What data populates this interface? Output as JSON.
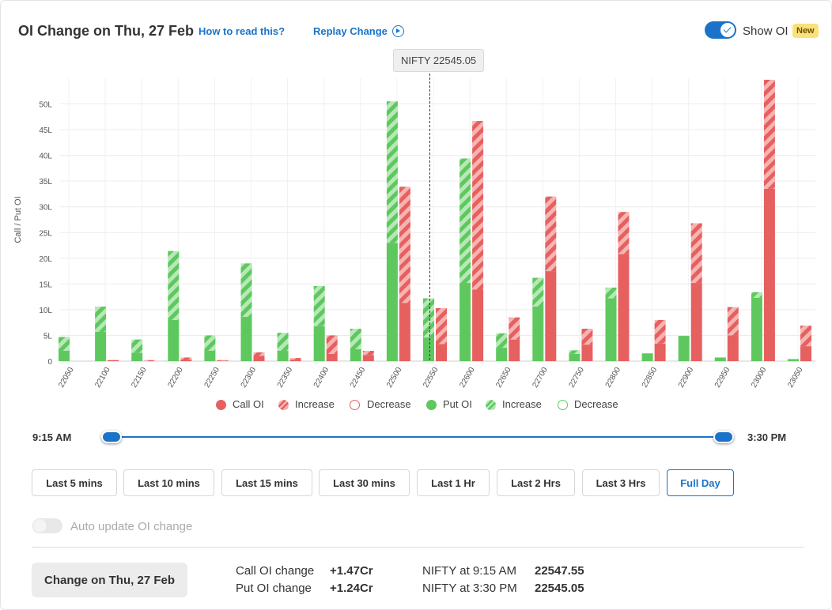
{
  "header": {
    "title": "OI Change on Thu, 27 Feb",
    "how_to_read": "How to read this?",
    "replay": "Replay Change",
    "show_oi_label": "Show OI",
    "new_badge": "New"
  },
  "tooltip": "NIFTY 22545.05",
  "colors": {
    "call": "#e5605f",
    "call_increase_stripe": "#f6b4b3",
    "put": "#5ec85e",
    "put_increase_stripe": "#b7e8b7",
    "accent": "#1a73c8"
  },
  "chart_data": {
    "type": "bar",
    "ylabel": "Call / Put OI",
    "ylim": [
      0,
      55
    ],
    "yticks": [
      "0",
      "5L",
      "10L",
      "15L",
      "20L",
      "25L",
      "30L",
      "35L",
      "40L",
      "45L",
      "50L"
    ],
    "grid": true,
    "categories": [
      "22050",
      "22100",
      "22150",
      "22200",
      "22250",
      "22300",
      "22350",
      "22400",
      "22450",
      "22500",
      "22550",
      "22600",
      "22650",
      "22700",
      "22750",
      "22800",
      "22850",
      "22900",
      "22950",
      "23000",
      "23050"
    ],
    "spot_marker": {
      "label": "NIFTY 22545.05",
      "value": 22545.05
    },
    "series": [
      {
        "name": "Put OI",
        "values": [
          2.0,
          5.7,
          1.6,
          8.0,
          2.0,
          8.6,
          2.0,
          6.8,
          2.3,
          23.0,
          4.6,
          15.2,
          2.6,
          10.6,
          1.4,
          12.2,
          1.5,
          4.9,
          0.7,
          12.3,
          0.4
        ]
      },
      {
        "name": "Increase",
        "values": [
          2.7,
          4.9,
          2.6,
          13.4,
          3.0,
          10.4,
          3.5,
          7.8,
          4.0,
          27.5,
          7.6,
          24.2,
          2.8,
          5.6,
          0.7,
          2.1,
          0,
          0,
          0,
          1.1,
          0
        ]
      },
      {
        "name": "Call OI",
        "values": [
          0,
          0.2,
          0,
          0.3,
          0.1,
          1.0,
          0.3,
          1.4,
          1.2,
          11.3,
          3.3,
          13.9,
          4.2,
          17.5,
          3.2,
          20.8,
          3.4,
          15.2,
          5.0,
          33.5,
          2.9
        ]
      },
      {
        "name": "Increase",
        "values": [
          0,
          0,
          0.2,
          0.4,
          0.1,
          0.7,
          0.3,
          3.6,
          0.8,
          22.6,
          7.0,
          32.8,
          4.3,
          14.5,
          3.1,
          8.2,
          4.6,
          11.6,
          5.5,
          21.2,
          4.0
        ]
      }
    ]
  },
  "legend": {
    "call_oi": "Call OI",
    "call_increase": "Increase",
    "call_decrease": "Decrease",
    "put_oi": "Put OI",
    "put_increase": "Increase",
    "put_decrease": "Decrease"
  },
  "slider": {
    "start": "9:15 AM",
    "end": "3:30 PM"
  },
  "timeframes": [
    "Last 5 mins",
    "Last 10 mins",
    "Last 15 mins",
    "Last 30 mins",
    "Last 1 Hr",
    "Last 2 Hrs",
    "Last 3 Hrs",
    "Full Day"
  ],
  "active_timeframe": "Full Day",
  "auto_update_label": "Auto update OI change",
  "summary": {
    "change_button": "Change on Thu, 27 Feb",
    "call_label": "Call OI change",
    "call_value": "+1.47Cr",
    "put_label": "Put OI change",
    "put_value": "+1.24Cr",
    "nifty_open_label": "NIFTY at 9:15 AM",
    "nifty_open_value": "22547.55",
    "nifty_close_label": "NIFTY at 3:30 PM",
    "nifty_close_value": "22545.05"
  }
}
